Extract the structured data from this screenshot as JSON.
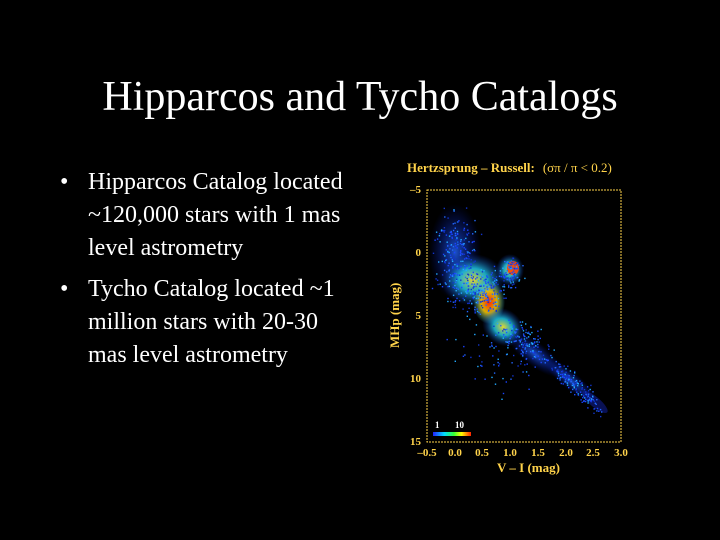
{
  "slide": {
    "title": "Hipparcos and Tycho Catalogs",
    "bullets": [
      "Hipparcos Catalog located ~120,000 stars with 1 mas level astrometry",
      "Tycho Catalog located ~1 million stars with 20-30 mas level astrometry"
    ],
    "bullet_symbol": "•"
  },
  "figure": {
    "title": "Hertzsprung – Russell:",
    "condition": "(σπ / π < 0.2)",
    "ylabel": "MHp (mag)",
    "xlabel": "V – I  (mag)",
    "yticks": [
      "–5",
      "0",
      "5",
      "10",
      "15"
    ],
    "xticks": [
      "–0.5",
      "0.0",
      "0.5",
      "1.0",
      "1.5",
      "2.0",
      "2.5",
      "3.0"
    ],
    "legend_labels": [
      "1",
      "10"
    ],
    "colors": {
      "axis": "#ffd34a",
      "background": "#000000"
    }
  },
  "chart_data": {
    "type": "heatmap",
    "title": "Hertzsprung – Russell:",
    "xlabel": "V – I  (mag)",
    "ylabel": "MHp (mag)",
    "xlim": [
      -0.5,
      3.0
    ],
    "ylim": [
      -5,
      15
    ],
    "y_inverted": true,
    "colorbar": {
      "min": 1,
      "max": 10
    }
  }
}
